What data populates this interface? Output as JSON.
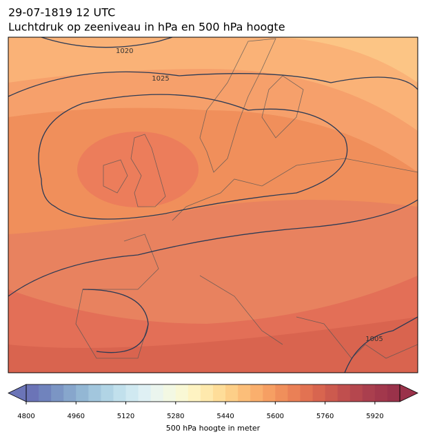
{
  "title": "29-07-1819 12 UTC",
  "subtitle": "Luchtdruk op zeeniveau in hPa en 500 hPa hoogte",
  "contour_labels": [
    1020,
    1025,
    1005
  ],
  "colorbar": {
    "label": "500 hPa hoogte in meter",
    "lim": [
      4800,
      6000
    ],
    "ticks": [
      4800,
      4960,
      5120,
      5280,
      5440,
      5600,
      5760,
      5920
    ],
    "colors": [
      "#6b74b7",
      "#7083bd",
      "#7b95c4",
      "#87a6cc",
      "#93b7d4",
      "#a2c6dd",
      "#b1d4e5",
      "#c1e0ec",
      "#d0e9f1",
      "#dff0f4",
      "#ebf5ee",
      "#f3f8e3",
      "#f9f8d5",
      "#fef3c2",
      "#fee9ad",
      "#fedd99",
      "#fdcf88",
      "#fcbe79",
      "#faaf6d",
      "#f69f63",
      "#f08f5b",
      "#ea8056",
      "#e27252",
      "#d8654f",
      "#cc5a4e",
      "#c04f4e",
      "#b5474e",
      "#aa3f4e",
      "#a2384c",
      "#9a324a"
    ]
  }
}
